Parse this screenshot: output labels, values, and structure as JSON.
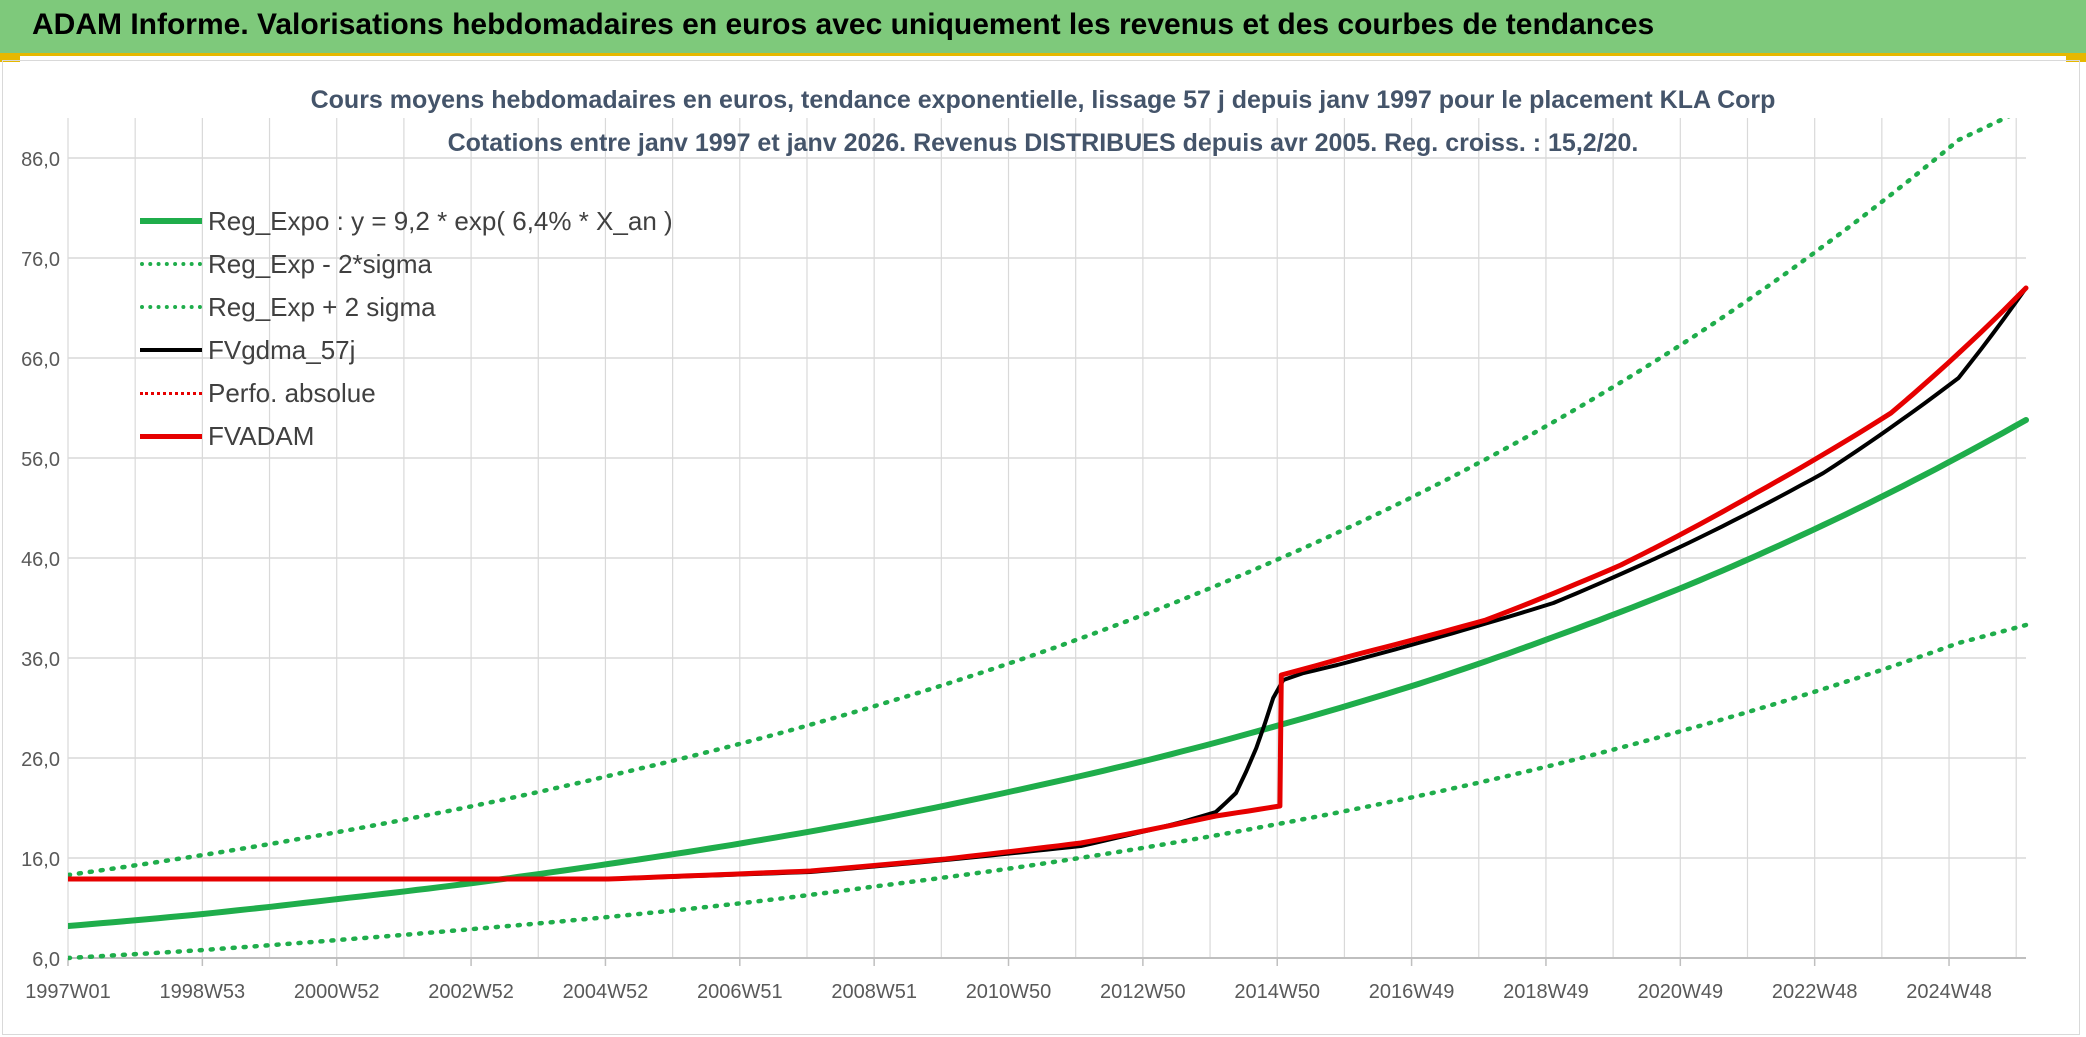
{
  "banner": {
    "title": "ADAM Informe. Valorisations hebdomadaires en euros avec uniquement les revenus et des courbes de tendances"
  },
  "colors": {
    "banner_bg": "#7ec97b",
    "banner_border": "#e6b800",
    "title_text": "#44546a",
    "trend_green": "#1fad4b",
    "adam_red": "#e60000",
    "fv_black": "#000000",
    "grid": "#d9d9d9"
  },
  "chart_data": {
    "type": "line",
    "title_line1": "Cours moyens hebdomadaires en euros, tendance exponentielle, lissage 57 j depuis janv 1997 pour le placement KLA Corp",
    "title_line2": "Cotations entre janv 1997 et janv 2026. Revenus DISTRIBUES depuis avr 2005. Reg. croiss. : 15,2/20.",
    "xlabel": "",
    "ylabel": "",
    "x_ticks": [
      "1997W01",
      "1998W53",
      "2000W52",
      "2002W52",
      "2004W52",
      "2006W51",
      "2008W51",
      "2010W50",
      "2012W50",
      "2014W50",
      "2016W49",
      "2018W49",
      "2020W49",
      "2022W48",
      "2024W48"
    ],
    "x_range_years": [
      1997.0,
      2026.0
    ],
    "y_ticks": [
      "6,0",
      "16,0",
      "26,0",
      "36,0",
      "46,0",
      "56,0",
      "66,0",
      "76,0",
      "86,0"
    ],
    "ylim": [
      6,
      90
    ],
    "grid": true,
    "legend_position": "top-left",
    "series": [
      {
        "name": "Reg_Expo : y = 9,2 * exp( 6,4% *  X_an )",
        "style": "solid",
        "color": "#1fad4b",
        "x": [
          1997,
          1999,
          2001,
          2003,
          2005,
          2007,
          2009,
          2011,
          2013,
          2015,
          2017,
          2019,
          2021,
          2023,
          2025,
          2026
        ],
        "y": [
          9.2,
          10.4,
          11.9,
          13.5,
          15.4,
          17.5,
          19.9,
          22.7,
          25.8,
          29.4,
          33.4,
          38.1,
          43.3,
          49.3,
          56.1,
          59.8
        ]
      },
      {
        "name": "Reg_Exp - 2*sigma",
        "style": "dotted",
        "color": "#1fad4b",
        "x": [
          1997,
          1999,
          2001,
          2003,
          2005,
          2007,
          2009,
          2011,
          2013,
          2015,
          2017,
          2019,
          2021,
          2023,
          2025,
          2026
        ],
        "y": [
          6.0,
          6.8,
          7.8,
          8.9,
          10.1,
          11.5,
          13.2,
          15.0,
          17.1,
          19.5,
          22.2,
          25.3,
          28.9,
          32.9,
          37.5,
          39.3
        ]
      },
      {
        "name": "Reg_Exp + 2 sigma",
        "style": "dotted",
        "color": "#1fad4b",
        "x": [
          1997,
          1999,
          2001,
          2003,
          2005,
          2007,
          2009,
          2011,
          2013,
          2015,
          2017,
          2019,
          2021,
          2023,
          2025,
          2026
        ],
        "y": [
          14.3,
          16.3,
          18.6,
          21.2,
          24.2,
          27.5,
          31.3,
          35.6,
          40.5,
          46.1,
          52.4,
          59.6,
          67.8,
          77.2,
          87.8,
          91.0
        ]
      },
      {
        "name": "FVgdma_57j",
        "style": "solid",
        "color": "#000000",
        "x": [
          1997,
          2005.0,
          2008,
          2010,
          2012,
          2013.5,
          2014.0,
          2014.3,
          2014.6,
          2014.85,
          2015.0,
          2015.3,
          2015.8,
          2017,
          2019,
          2021,
          2023,
          2025,
          2026
        ],
        "y": [
          13.9,
          13.9,
          14.6,
          15.8,
          17.2,
          19.6,
          20.6,
          22.5,
          27.0,
          32.0,
          33.8,
          34.5,
          35.3,
          37.5,
          41.5,
          47.5,
          54.5,
          64.0,
          73.0
        ]
      },
      {
        "name": "Perfo. absolue",
        "style": "dotted",
        "color": "#e60000",
        "x": [
          1997,
          2005.0,
          2008,
          2010,
          2012,
          2014.0,
          2014.95,
          2014.97,
          2016,
          2018,
          2020,
          2022,
          2024,
          2026
        ],
        "y": [
          13.9,
          13.9,
          14.7,
          15.9,
          17.5,
          20.2,
          21.2,
          34.3,
          36.2,
          39.8,
          45.3,
          52.5,
          60.5,
          73.0
        ]
      },
      {
        "name": "FVADAM",
        "style": "solid",
        "color": "#e60000",
        "x": [
          1997,
          2005.0,
          2008,
          2010,
          2012,
          2014.0,
          2014.95,
          2014.97,
          2016,
          2018,
          2020,
          2022,
          2024,
          2026
        ],
        "y": [
          13.9,
          13.9,
          14.7,
          15.9,
          17.5,
          20.2,
          21.2,
          34.3,
          36.2,
          39.8,
          45.3,
          52.5,
          60.5,
          73.0
        ]
      }
    ]
  }
}
